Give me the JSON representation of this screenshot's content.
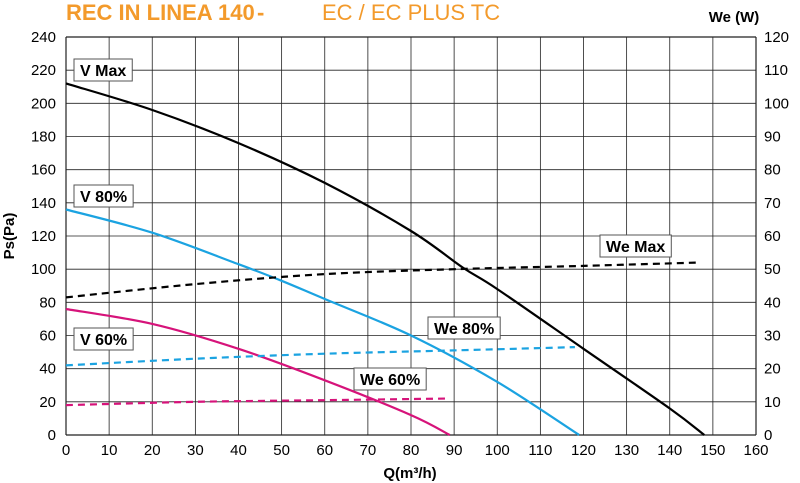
{
  "chart_data": {
    "type": "line",
    "title": "REC IN LINEA 140",
    "title_separator": "-",
    "subtitle": "EC  /  EC PLUS TC",
    "xlabel": "Q(m³/h)",
    "ylabel": "Ps(Pa)",
    "y2label": "We (W)",
    "xlim": [
      0,
      160
    ],
    "ylim": [
      0,
      240
    ],
    "y2lim": [
      0,
      120
    ],
    "x_ticks": [
      "0",
      "10",
      "20",
      "30",
      "40",
      "50",
      "60",
      "70",
      "80",
      "90",
      "100",
      "110",
      "120",
      "130",
      "140",
      "150",
      "160"
    ],
    "y_ticks": [
      "0",
      "20",
      "40",
      "60",
      "80",
      "100",
      "120",
      "140",
      "160",
      "180",
      "200",
      "220",
      "240"
    ],
    "y2_ticks": [
      "0",
      "10",
      "20",
      "30",
      "40",
      "50",
      "60",
      "70",
      "80",
      "90",
      "100",
      "110",
      "120"
    ],
    "grid": true,
    "colors": {
      "black": "#000000",
      "blue": "#1ba3e1",
      "magenta": "#d6137a",
      "title": "#f39a2b"
    },
    "series": [
      {
        "name": "V Max",
        "axis": "left",
        "style": "solid",
        "color": "#000000",
        "x": [
          0,
          20,
          40,
          60,
          80,
          92,
          100,
          120,
          140,
          148
        ],
        "y": [
          212,
          196,
          176,
          152,
          123,
          101,
          88,
          52,
          16,
          0
        ]
      },
      {
        "name": "V 80%",
        "axis": "left",
        "style": "solid",
        "color": "#1ba3e1",
        "x": [
          0,
          20,
          40,
          50,
          60,
          80,
          100,
          119
        ],
        "y": [
          136,
          122,
          103,
          93,
          82,
          60,
          32,
          0
        ]
      },
      {
        "name": "V 60%",
        "axis": "left",
        "style": "solid",
        "color": "#d6137a",
        "x": [
          0,
          20,
          40,
          60,
          80,
          89
        ],
        "y": [
          76,
          67,
          52,
          33,
          12,
          0
        ]
      },
      {
        "name": "We Max",
        "axis": "right",
        "style": "dashed",
        "color": "#000000",
        "x": [
          0,
          30,
          60,
          90,
          120,
          147
        ],
        "y": [
          41.5,
          45.5,
          48.5,
          50,
          51,
          52
        ]
      },
      {
        "name": "We 80%",
        "axis": "right",
        "style": "dashed",
        "color": "#1ba3e1",
        "x": [
          0,
          30,
          60,
          90,
          118
        ],
        "y": [
          21,
          23,
          24.5,
          25.5,
          26.5
        ]
      },
      {
        "name": "We 60%",
        "axis": "right",
        "style": "dashed",
        "color": "#d6137a",
        "x": [
          0,
          30,
          60,
          89
        ],
        "y": [
          9,
          10,
          10.5,
          11
        ]
      }
    ],
    "annotations": [
      {
        "text": "V Max",
        "series": "V Max"
      },
      {
        "text": "V 80%",
        "series": "V 80%"
      },
      {
        "text": "V 60%",
        "series": "V 60%"
      },
      {
        "text": "We Max",
        "series": "We Max"
      },
      {
        "text": "We 80%",
        "series": "We 80%"
      },
      {
        "text": "We 60%",
        "series": "We 60%"
      }
    ]
  }
}
